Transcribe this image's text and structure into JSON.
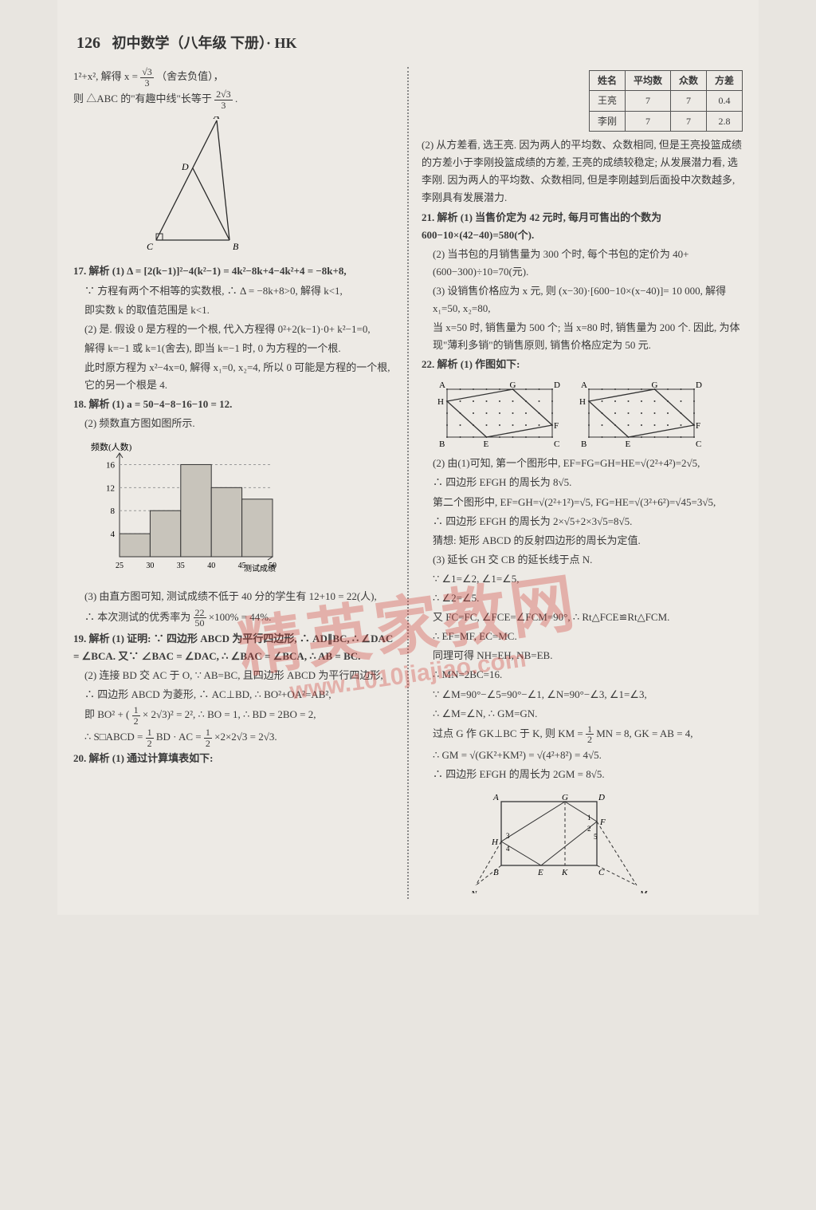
{
  "header": {
    "page_num": "126",
    "title": "初中数学（八年级 下册）· HK"
  },
  "left": {
    "l1a": "1²+x², 解得 x =",
    "l1_frac_num": "√3",
    "l1_frac_den": "3",
    "l1b": "（舍去负值），",
    "l2a": "则 △ABC 的\"有趣中线\"长等于",
    "l2_frac_num": "2√3",
    "l2_frac_den": "3",
    "l2b": ".",
    "triangle": {
      "A": "A",
      "B": "B",
      "C": "C",
      "D": "D",
      "pts": {
        "A": [
          120,
          5
        ],
        "D": [
          90,
          65
        ],
        "C": [
          44,
          155
        ],
        "B": [
          136,
          155
        ]
      },
      "stroke": "#2a2a2a"
    },
    "q17": "17. 解析  (1) Δ = [2(k−1)]²−4(k²−1) = 4k²−8k+4−4k²+4 = −8k+8,",
    "q17a": "∵ 方程有两个不相等的实数根, ∴ Δ = −8k+8>0, 解得 k<1,",
    "q17b": "即实数 k 的取值范围是 k<1.",
    "q17c": "(2) 是. 假设 0 是方程的一个根, 代入方程得 0²+2(k−1)·0+ k²−1=0,",
    "q17d": "解得 k=−1 或 k=1(舍去), 即当 k=−1 时, 0 为方程的一个根.",
    "q17e": "此时原方程为 x²−4x=0, 解得 x₁=0, x₂=4, 所以 0 可能是方程的一个根, 它的另一个根是 4.",
    "q18": "18. 解析  (1) a = 50−4−8−16−10 = 12.",
    "q18a": "(2) 频数直方图如图所示.",
    "histogram": {
      "ylabel": "频数(人数)",
      "xlabel": "测试成绩",
      "xticks": [
        "25",
        "30",
        "35",
        "40",
        "45",
        "50"
      ],
      "yticks": [
        "4",
        "8",
        "12",
        "16"
      ],
      "values": [
        4,
        8,
        16,
        12,
        10
      ],
      "bar_color": "#c8c4bb",
      "bar_stroke": "#333",
      "axis_color": "#333",
      "grid_dash": "3,3",
      "ymax": 18
    },
    "q18b": "(3) 由直方图可知, 测试成绩不低于 40 分的学生有 12+10 = 22(人),",
    "q18c_a": "∴ 本次测试的优秀率为 ",
    "q18c_frac_num": "22",
    "q18c_frac_den": "50",
    "q18c_b": "×100% = 44%.",
    "q19": "19. 解析  (1) 证明: ∵ 四边形 ABCD 为平行四边形, ∴ AD∥BC, ∴ ∠DAC = ∠BCA. 又∵ ∠BAC = ∠DAC, ∴ ∠BAC = ∠BCA, ∴ AB = BC.",
    "q19a": "(2) 连接 BD 交 AC 于 O, ∵ AB=BC, 且四边形 ABCD 为平行四边形,",
    "q19b": "∴ 四边形 ABCD 为菱形, ∴ AC⊥BD, ∴ BO²+OA²=AB²,",
    "q19c_a": "即 BO² + (",
    "q19c_frac1_num": "1",
    "q19c_frac1_den": "2",
    "q19c_b": " × 2√3)² = 2², ∴ BO = 1, ∴ BD = 2BO = 2,",
    "q19d_a": "∴ S□ABCD = ",
    "q19d_frac_num": "1",
    "q19d_frac_den": "2",
    "q19d_b": " BD · AC = ",
    "q19d_frac2_num": "1",
    "q19d_frac2_den": "2",
    "q19d_c": " ×2×2√3 = 2√3.",
    "q20": "20. 解析  (1) 通过计算填表如下:"
  },
  "right": {
    "table": {
      "headers": [
        "姓名",
        "平均数",
        "众数",
        "方差"
      ],
      "rows": [
        [
          "王亮",
          "7",
          "7",
          "0.4"
        ],
        [
          "李刚",
          "7",
          "7",
          "2.8"
        ]
      ],
      "border_color": "#555",
      "bg": "transparent"
    },
    "t2": "(2) 从方差看, 选王亮. 因为两人的平均数、众数相同, 但是王亮投篮成绩的方差小于李刚投篮成绩的方差, 王亮的成绩较稳定; 从发展潜力看, 选李刚. 因为两人的平均数、众数相同, 但是李刚越到后面投中次数越多, 李刚具有发展潜力.",
    "q21": "21. 解析  (1) 当售价定为 42 元时, 每月可售出的个数为 600−10×(42−40)=580(个).",
    "q21a": "(2) 当书包的月销售量为 300 个时, 每个书包的定价为 40+(600−300)÷10=70(元).",
    "q21b": "(3) 设销售价格应为 x 元, 则 (x−30)·[600−10×(x−40)]= 10 000, 解得 x₁=50, x₂=80,",
    "q21c": "当 x=50 时, 销售量为 500 个; 当 x=80 时, 销售量为 200 个. 因此, 为体现\"薄利多销\"的销售原则, 销售价格应定为 50 元.",
    "q22": "22. 解析  (1) 作图如下:",
    "rhombus": {
      "labels": [
        "A",
        "G",
        "D",
        "H",
        "F",
        "B",
        "E",
        "C"
      ],
      "stroke": "#333",
      "dot_color": "#333"
    },
    "q22a": "(2) 由(1)可知, 第一个图形中, EF=FG=GH=HE=√(2²+4²)=2√5,",
    "q22b": "∴ 四边形 EFGH 的周长为 8√5.",
    "q22c": "第二个图形中, EF=GH=√(2²+1²)=√5, FG=HE=√(3²+6²)=√45=3√5,",
    "q22d": "∴ 四边形 EFGH 的周长为 2×√5+2×3√5=8√5.",
    "q22e": "猜想: 矩形 ABCD 的反射四边形的周长为定值.",
    "q22f": "(3) 延长 GH 交 CB 的延长线于点 N.",
    "q22g": "∵ ∠1=∠2, ∠1=∠5,",
    "q22h": "∴ ∠2=∠5.",
    "q22i": "又 FC=FC, ∠FCE=∠FCM=90°, ∴ Rt△FCE≌Rt△FCM.",
    "q22j": "∴ EF=MF, EC=MC.",
    "q22k": "同理可得 NH=EH, NB=EB.",
    "q22l": "∴ MN=2BC=16.",
    "q22m": "∵ ∠M=90°−∠5=90°−∠1, ∠N=90°−∠3, ∠1=∠3,",
    "q22n": "∴ ∠M=∠N, ∴ GM=GN.",
    "q22o_a": "过点 G 作 GK⊥BC 于 K, 则 KM = ",
    "q22o_frac_num": "1",
    "q22o_frac_den": "2",
    "q22o_b": " MN = 8, GK = AB = 4,",
    "q22p": "∴ GM = √(GK²+KM²) = √(4²+8²) = 4√5.",
    "q22q": "∴ 四边形 EFGH 的周长为 2GM = 8√5.",
    "rect": {
      "labels": {
        "A": "A",
        "G": "G",
        "D": "D",
        "F": "F",
        "H": "H",
        "N": "N",
        "B": "B",
        "E": "E",
        "K": "K",
        "C": "C",
        "M": "M"
      },
      "angles": [
        "1",
        "2",
        "3",
        "4",
        "5"
      ],
      "stroke": "#333",
      "dash": "4,3"
    }
  },
  "watermark": {
    "main": "精英家教网",
    "url": "www.1010jiajiao.com"
  },
  "colors": {
    "page_bg": "#e8e5e0",
    "text": "#3a3a3a",
    "watermark": "rgba(210,70,60,0.35)"
  }
}
